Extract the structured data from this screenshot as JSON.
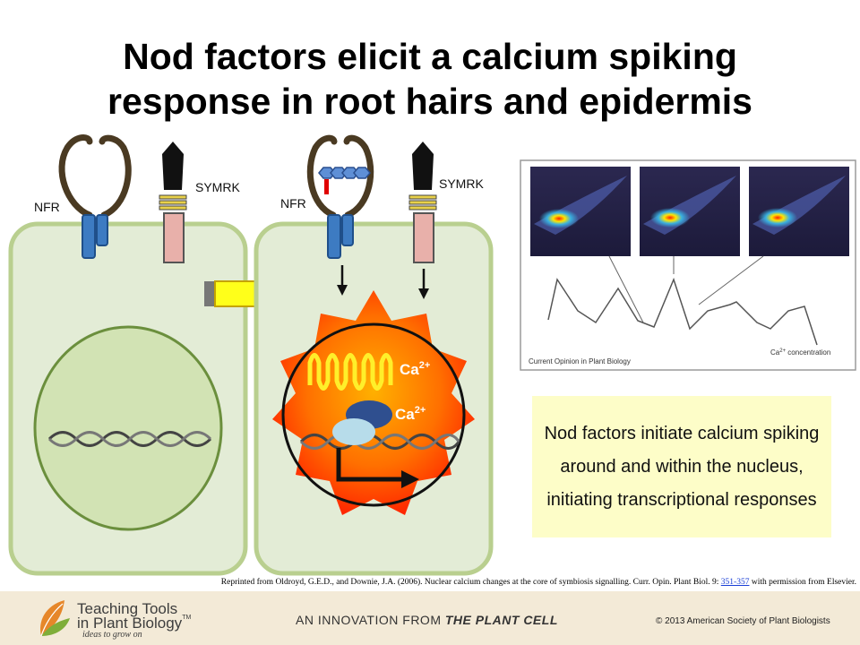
{
  "title": {
    "line1": "Nod factors elicit a calcium spiking",
    "line2": "response in root hairs and epidermis"
  },
  "diagram": {
    "left_cell": {
      "nfr_label": "NFR",
      "symrk_label": "SYMRK"
    },
    "right_cell": {
      "nfr_label": "NFR",
      "symrk_label": "SYMRK",
      "ca_label_1": "Ca",
      "ca_label_2": "Ca",
      "ca_superscript": "2+"
    },
    "colors": {
      "cell_fill": "#e3ecd6",
      "cell_border": "#b9cf8f",
      "receptor_blue": "#3d7bc2",
      "symrk_pink": "#e8b0aa",
      "arrow_yellow": "#ffff1a",
      "starburst_red": "#ff1a00",
      "starburst_orange": "#ffa000"
    }
  },
  "imaging_panel": {
    "caption_left": "Current Opinion in Plant Biology",
    "caption_right": "Ca",
    "caption_right_sup": "2+",
    "caption_right_suffix": " concentration"
  },
  "callout": {
    "text": "Nod factors initiate calcium spiking around and within the nucleus, initiating transcriptional responses"
  },
  "citation": {
    "prefix": "Reprinted from Oldroyd, G.E.D., and Downie, J.A. (2006). Nuclear calcium changes at the core of symbiosis signalling. Curr. Opin. Plant Biol. 9: ",
    "pages": "351-357",
    "suffix": " with permission from Elsevier."
  },
  "footer": {
    "logo_line1": "Teaching Tools",
    "logo_line2": "in Plant Biology",
    "logo_tm": "TM",
    "logo_tagline": "ideas to grow on",
    "innovation_prefix": "AN INNOVATION FROM ",
    "innovation_brand": "THE PLANT CELL",
    "copyright": "© 2013 American Society of Plant Biologists"
  }
}
